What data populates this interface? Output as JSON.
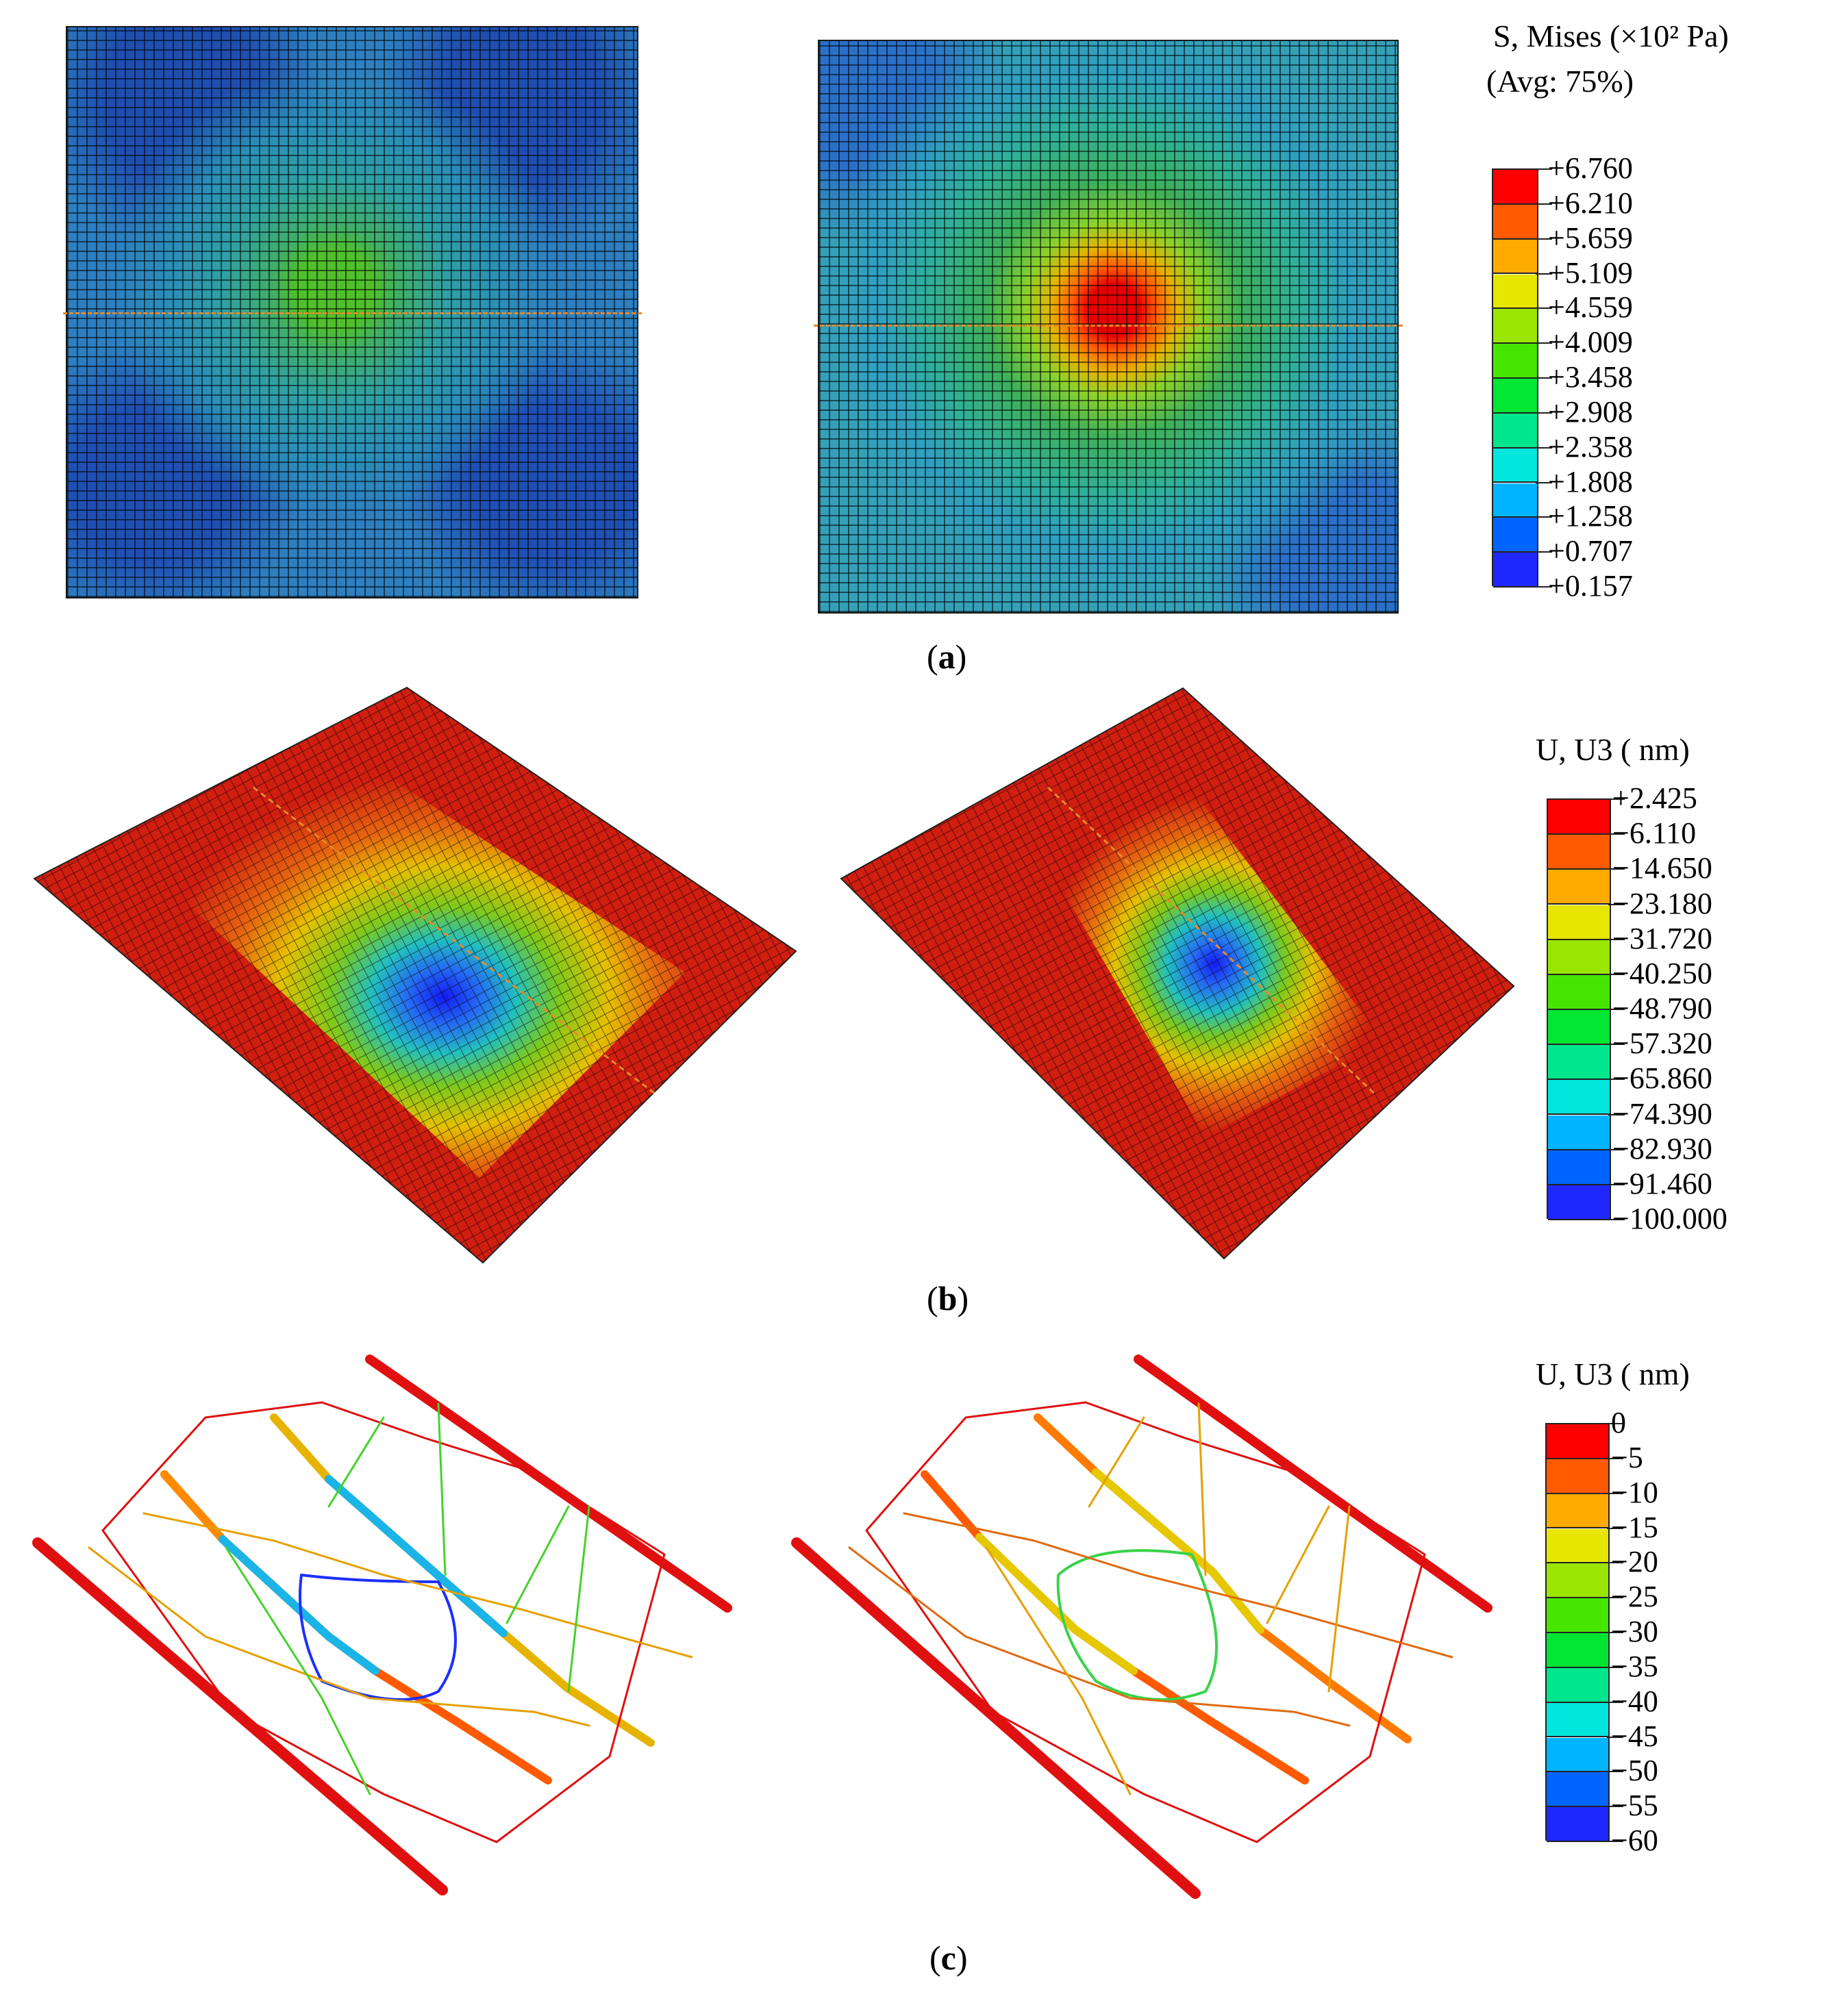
{
  "panel_a": {
    "caption_letter": "a",
    "legend": {
      "title_line1": "S, Mises (×10² Pa)",
      "title_line2": "(Avg: 75%)",
      "labels": [
        "+6.760",
        "+6.210",
        "+5.659",
        "+5.109",
        "+4.559",
        "+4.009",
        "+3.458",
        "+2.908",
        "+2.358",
        "+1.808",
        "+1.258",
        "+0.707",
        "+0.157"
      ]
    }
  },
  "panel_b": {
    "caption_letter": "b",
    "legend": {
      "title": "U, U3 ( nm)",
      "labels": [
        "+2.425",
        "−6.110",
        "−14.650",
        "−23.180",
        "−31.720",
        "−40.250",
        "−48.790",
        "−57.320",
        "−65.860",
        "−74.390",
        "−82.930",
        "−91.460",
        "−100.000"
      ]
    }
  },
  "panel_c": {
    "caption_letter": "c",
    "legend": {
      "title": "U, U3 ( nm)",
      "labels": [
        "0",
        "−5",
        "−10",
        "−15",
        "−20",
        "−25",
        "−30",
        "−35",
        "−40",
        "−45",
        "−50",
        "−55",
        "−60"
      ]
    }
  },
  "colors": {
    "scale": [
      "#ff0000",
      "#ff5a00",
      "#ffaa00",
      "#e6e600",
      "#9ae600",
      "#46e600",
      "#00e632",
      "#00e68c",
      "#00e6dc",
      "#00b4ff",
      "#0064ff",
      "#1e28ff",
      "#0000ff"
    ],
    "mesh_dark_blue": "#1f4fa8",
    "mesh_teal": "#2a9fb0",
    "mesh_green": "#38b04a",
    "mesh_red": "#d01e10",
    "dash_orange": "#e8892a"
  }
}
